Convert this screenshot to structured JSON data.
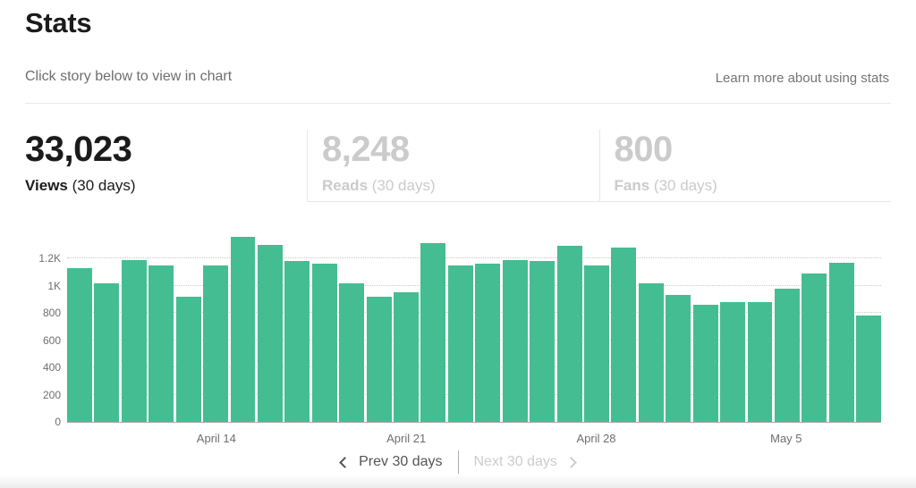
{
  "page": {
    "title": "Stats",
    "subtitle": "Click story below to view in chart",
    "learn_more": "Learn more about using stats"
  },
  "metrics": [
    {
      "value": "33,023",
      "label": "Views",
      "period": "(30 days)",
      "state": "active"
    },
    {
      "value": "8,248",
      "label": "Reads",
      "period": "(30 days)",
      "state": "inactive"
    },
    {
      "value": "800",
      "label": "Fans",
      "period": "(30 days)",
      "state": "inactive"
    }
  ],
  "chart_data": {
    "type": "bar",
    "values": [
      1130,
      1020,
      1190,
      1150,
      920,
      1150,
      1360,
      1300,
      1180,
      1160,
      1020,
      920,
      950,
      1310,
      1150,
      1160,
      1190,
      1180,
      1290,
      1150,
      1280,
      1020,
      930,
      860,
      880,
      880,
      980,
      1090,
      1170,
      780
    ],
    "x_tick_labels": [
      {
        "index": 5,
        "label": "April 14"
      },
      {
        "index": 12,
        "label": "April 21"
      },
      {
        "index": 19,
        "label": "April 28"
      },
      {
        "index": 26,
        "label": "May 5"
      }
    ],
    "y_ticks": [
      {
        "value": 0,
        "label": "0"
      },
      {
        "value": 200,
        "label": "200"
      },
      {
        "value": 400,
        "label": "400"
      },
      {
        "value": 600,
        "label": "600"
      },
      {
        "value": 800,
        "label": "800"
      },
      {
        "value": 1000,
        "label": "1K"
      },
      {
        "value": 1200,
        "label": "1.2K"
      }
    ],
    "ylim": [
      0,
      1430
    ],
    "grid": "dotted horizontal",
    "legend": "none",
    "bar_color": "#45bd92",
    "axis_line_color": "#a8a8a8"
  },
  "pagination": {
    "prev_label": "Prev 30 days",
    "next_label": "Next 30 days",
    "prev_icon": "chevron-left-icon",
    "next_icon": "chevron-right-icon"
  }
}
